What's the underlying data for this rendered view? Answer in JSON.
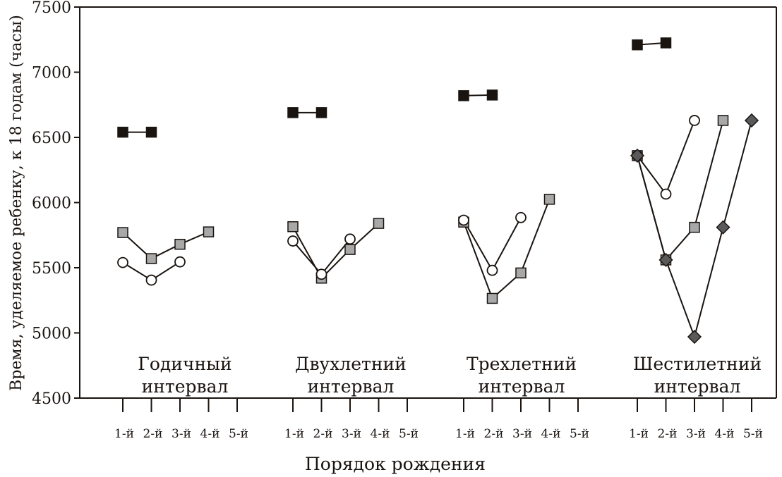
{
  "chart_data": {
    "type": "line",
    "title": "",
    "ylabel": "Время, уделяемое ребенку, к 18 годам (часы)",
    "xlabel": "Порядок рождения",
    "ylim": [
      4500,
      7500
    ],
    "y_ticks": [
      "7500",
      "7000",
      "6500",
      "6000",
      "5500",
      "5000",
      "4500"
    ],
    "categories": [
      "1-й",
      "2-й",
      "3-й",
      "4-й",
      "5-й"
    ],
    "grid": false,
    "legend": "none",
    "colors": {
      "black_square": "#1a1410",
      "gray_square": "#a8a8a8",
      "white_circle": "#ffffff",
      "dark_diamond": "#5a5a5a",
      "line": "#1a1410"
    },
    "groups": [
      {
        "label_line1": "Годичный",
        "label_line2": "интервал",
        "series": [
          {
            "marker": "square-black",
            "values": [
              6540,
              6540
            ]
          },
          {
            "marker": "square-gray",
            "values": [
              5770,
              5570,
              5680,
              5775
            ]
          },
          {
            "marker": "circle-white",
            "values": [
              5540,
              5405,
              5545
            ]
          }
        ]
      },
      {
        "label_line1": "Двухлетний",
        "label_line2": "интервал",
        "series": [
          {
            "marker": "square-black",
            "values": [
              6690,
              6690
            ]
          },
          {
            "marker": "square-gray",
            "values": [
              5815,
              5420,
              5640,
              5840
            ]
          },
          {
            "marker": "circle-white",
            "values": [
              5705,
              5450,
              5720
            ]
          }
        ]
      },
      {
        "label_line1": "Трехлетний",
        "label_line2": "интервал",
        "series": [
          {
            "marker": "square-black",
            "values": [
              6820,
              6825
            ]
          },
          {
            "marker": "square-gray",
            "values": [
              5850,
              5265,
              5460,
              6025
            ]
          },
          {
            "marker": "circle-white",
            "values": [
              5865,
              5480,
              5885
            ]
          }
        ]
      },
      {
        "label_line1": "Шестилетний",
        "label_line2": "интервал",
        "series": [
          {
            "marker": "square-black",
            "values": [
              7210,
              7225
            ]
          },
          {
            "marker": "square-gray",
            "values": [
              6360,
              5560,
              5810,
              6630
            ]
          },
          {
            "marker": "circle-white",
            "values": [
              6360,
              6065,
              6630
            ]
          },
          {
            "marker": "diamond-dark",
            "values": [
              6360,
              5560,
              4970,
              5810,
              6630
            ]
          }
        ]
      }
    ]
  }
}
